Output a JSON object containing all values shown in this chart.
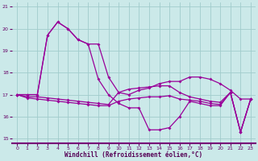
{
  "background_color": "#cbe9e9",
  "line_color": "#990099",
  "grid_color": "#a0cccc",
  "xlabel": "Windchill (Refroidissement éolien,°C)",
  "ylim": [
    14.8,
    21.2
  ],
  "xlim": [
    -0.5,
    23.5
  ],
  "yticks": [
    15,
    16,
    17,
    18,
    19,
    20,
    21
  ],
  "xticks": [
    0,
    1,
    2,
    3,
    4,
    5,
    6,
    7,
    8,
    9,
    10,
    11,
    12,
    13,
    14,
    15,
    16,
    17,
    18,
    19,
    20,
    21,
    22,
    23
  ],
  "series": [
    [
      17.0,
      17.0,
      17.0,
      19.7,
      20.3,
      20.0,
      19.5,
      19.3,
      19.3,
      17.8,
      17.1,
      17.0,
      17.2,
      17.3,
      17.5,
      17.6,
      17.6,
      17.8,
      17.8,
      17.7,
      17.5,
      17.2,
      16.8,
      16.8
    ],
    [
      17.0,
      17.0,
      17.0,
      19.7,
      20.3,
      20.0,
      19.5,
      19.3,
      17.7,
      17.0,
      16.6,
      16.4,
      16.4,
      15.4,
      15.4,
      15.5,
      16.0,
      16.7,
      16.6,
      16.5,
      16.5,
      17.1,
      15.3,
      16.8
    ],
    [
      17.0,
      16.9,
      16.9,
      16.85,
      16.8,
      16.75,
      16.7,
      16.65,
      16.6,
      16.55,
      17.1,
      17.25,
      17.3,
      17.35,
      17.4,
      17.4,
      17.1,
      16.9,
      16.8,
      16.7,
      16.65,
      17.1,
      15.3,
      16.8
    ],
    [
      17.0,
      16.85,
      16.8,
      16.75,
      16.7,
      16.65,
      16.6,
      16.55,
      16.5,
      16.5,
      16.7,
      16.8,
      16.85,
      16.9,
      16.9,
      16.95,
      16.8,
      16.75,
      16.7,
      16.6,
      16.55,
      17.1,
      15.3,
      16.8
    ]
  ]
}
